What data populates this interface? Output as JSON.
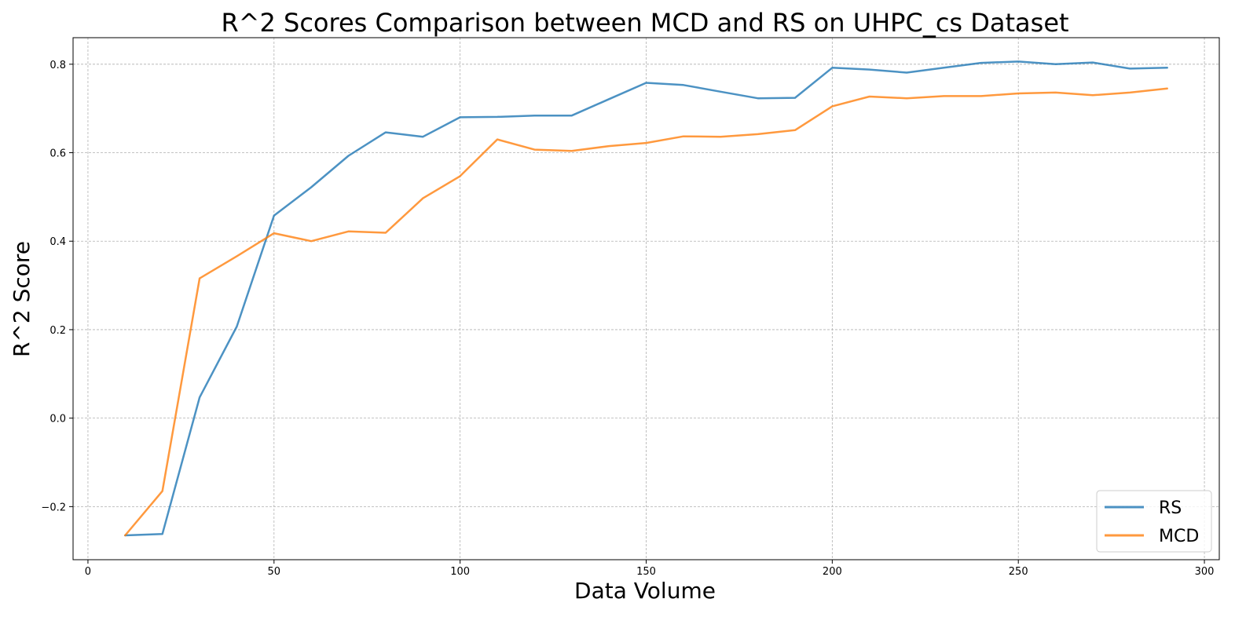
{
  "chart_data": {
    "type": "line",
    "title": "R^2 Scores Comparison between MCD and RS on UHPC_cs Dataset",
    "xlabel": "Data Volume",
    "ylabel": "R^2 Score",
    "xlim": [
      -4,
      304
    ],
    "ylim": [
      -0.32,
      0.86
    ],
    "x_ticks": [
      0,
      50,
      100,
      150,
      200,
      250,
      300
    ],
    "x_tick_labels": [
      "0",
      "50",
      "100",
      "150",
      "200",
      "250",
      "300"
    ],
    "y_ticks": [
      -0.2,
      0.0,
      0.2,
      0.4,
      0.6,
      0.8
    ],
    "y_tick_labels": [
      "−0.2",
      "0.0",
      "0.2",
      "0.4",
      "0.6",
      "0.8"
    ],
    "grid": true,
    "legend_position": "lower-right",
    "x": [
      10,
      20,
      30,
      40,
      50,
      60,
      70,
      80,
      90,
      100,
      110,
      120,
      130,
      140,
      150,
      160,
      170,
      180,
      190,
      200,
      210,
      220,
      230,
      240,
      250,
      260,
      270,
      280,
      290
    ],
    "series": [
      {
        "name": "RS",
        "color": "#1f77b4",
        "values": [
          -0.265,
          -0.262,
          0.047,
          0.207,
          0.458,
          0.522,
          0.593,
          0.646,
          0.636,
          0.68,
          0.681,
          0.684,
          0.684,
          0.721,
          0.758,
          0.753,
          0.738,
          0.723,
          0.724,
          0.792,
          0.788,
          0.781,
          0.792,
          0.803,
          0.806,
          0.8,
          0.804,
          0.79,
          0.792
        ]
      },
      {
        "name": "MCD",
        "color": "#ff7f0e",
        "values": [
          -0.265,
          -0.165,
          0.316,
          0.366,
          0.418,
          0.4,
          0.422,
          0.419,
          0.497,
          0.547,
          0.63,
          0.607,
          0.604,
          0.615,
          0.622,
          0.637,
          0.636,
          0.642,
          0.651,
          0.705,
          0.727,
          0.723,
          0.728,
          0.728,
          0.734,
          0.736,
          0.73,
          0.736,
          0.745
        ]
      }
    ]
  }
}
